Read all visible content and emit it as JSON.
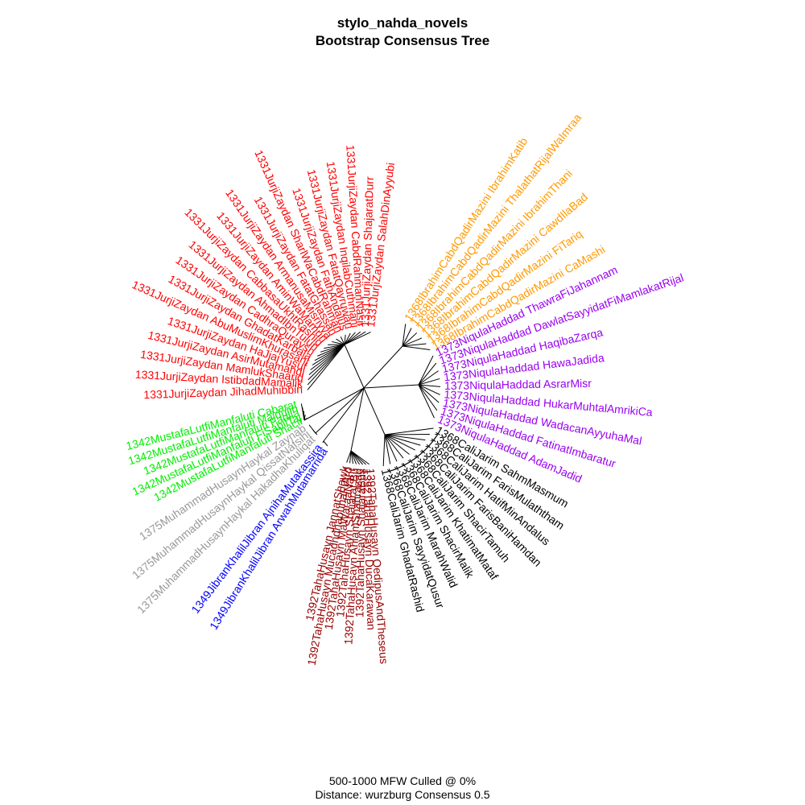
{
  "title": {
    "line1": "stylo_nahda_novels",
    "line2": "Bootstrap Consensus Tree"
  },
  "footer": {
    "line1": "500-1000 MFW  Culled @ 0%",
    "line2": "Distance: wurzburg Consensus 0.5"
  },
  "colors": {
    "Jurji": "#ff0000",
    "Mazini": "#ff9900",
    "Haddad": "#9900ee",
    "Jarim": "#000000",
    "Taha": "#990000",
    "Jibran": "#0000ff",
    "Haykal": "#999999",
    "Manfaluti": "#00ee00",
    "edge": "#000000"
  },
  "groups": [
    {
      "author": "Jurji",
      "labels": [
        "1331JurjiZaydan JihadMuhibbin",
        "1331JurjiZaydan IstibdadMamalik",
        "1331JurjiZaydan MamlukShaarid",
        "1331JurjiZaydan AsirMutamahdi",
        "1331JurjiZaydan HaJjajYusuf",
        "1331JurjiZaydan AbuMuslimKhurasani",
        "1331JurjiZaydan GhadatKarbala",
        "1331JurjiZaydan CadhraQuraysh",
        "1331JurjiZaydan AhmadIbnTulun",
        "1331JurjiZaydan CabbasaUkhtRashid",
        "1331JurjiZaydan AminWaMamun",
        "1331JurjiZaydan ArmanusaMisriyya",
        "1331JurjiZaydan FatatGhassan",
        "1331JurjiZaydan SharlWaCabdRahman",
        "1331JurjiZaydan FathAndalus",
        "1331JurjiZaydan FatatQayruwan",
        "1331JurjiZaydan InqilabCuthmani",
        "1331JurjiZaydan CabdRahmanNasir",
        "1331JurjiZaydan ShajaratDurr",
        "1331JurjiZaydan SalahDinAyyubi"
      ]
    },
    {
      "author": "Mazini",
      "labels": [
        "1368IbrahimCabdQadirMazini IbrahimKatib",
        "1368IbrahimCabdQadirMazini ThalathatRijalWaImraa",
        "1368IbrahimCabdQadirMazini IbrahimThani",
        "1368IbrahimCabdQadirMazini CawdIlaBad",
        "1368IbrahimCabdQadirMazini FiTariq",
        "1368IbrahimCabdQadirMazini CaMashi"
      ]
    },
    {
      "author": "Haddad",
      "labels": [
        "1373NiqulaHaddad ThawraFiJahannam",
        "1373NiqulaHaddad DawlatSayyidatFiMamlakatRijal",
        "1373NiqulaHaddad HaqibaZarqa",
        "1373NiqulaHaddad HawaJadida",
        "1373NiqulaHaddad AsrarMisr",
        "1373NiqulaHaddad HukarMuhtalAmrikiCa",
        "1373NiqulaHaddad WadacanAyyuhaMal",
        "1373NiqulaHaddad FatinatImbaratur",
        "1373NiqulaHaddad AdamJadid"
      ]
    },
    {
      "author": "Jarim",
      "labels": [
        "1368CaliJarim SahmMasmum",
        "1368CaliJarim FarisMulaththam",
        "1368CaliJarim HatifMinAndalus",
        "1368CaliJarim FarisBaniHamdan",
        "1368CaliJarim ShacirTamuh",
        "1368CaliJarim KhatimatMataf",
        "1368CaliJarim ShacirMalik",
        "1368CaliJarim MarahWalid",
        "1368CaliJarim SayyidatQusur",
        "1368CaliJarim GhadatRashid"
      ]
    },
    {
      "author": "Taha",
      "labels": [
        "1392TahaHusayn OedipusAndTheseus",
        "1392TahaHusayn DucaKarawan",
        "1392TahaHusayn ShajaraBus",
        "1392TahaHusayn AhlamShahrazad",
        "1392TahaHusayn Shajarat Bu",
        "1392TahaHusayn MaWaraaNahr",
        "1392TahaHusayn MucadhdhabunaFiArd",
        "1392TahaHusayn JannatShawk"
      ]
    },
    {
      "author": "Jibran",
      "labels": [
        "1349JibranKhalilJibran ArwahMutamarrida",
        "1349JibranKhalilJibran AjnihaMutakassira"
      ]
    },
    {
      "author": "Haykal",
      "labels": [
        "1375MuhammadHusaynHaykal HakadhaKhuliqat",
        "1375MuhammadHusaynHaykal QissatNafsihi",
        "1375MuhammadHusaynHaykal Zaynab"
      ]
    },
    {
      "author": "Manfaluti",
      "labels": [
        "1342MustafaLutfiManfaluti Shacir",
        "1342MustafaLutfiManfaluti FiSabilTaj",
        "1342MustafaLutfiManfaluti Fadila",
        "1342MustafaLutfiManfaluti Majdulin",
        "1342MustafaLutfiManfaluti Cabarat"
      ]
    }
  ]
}
